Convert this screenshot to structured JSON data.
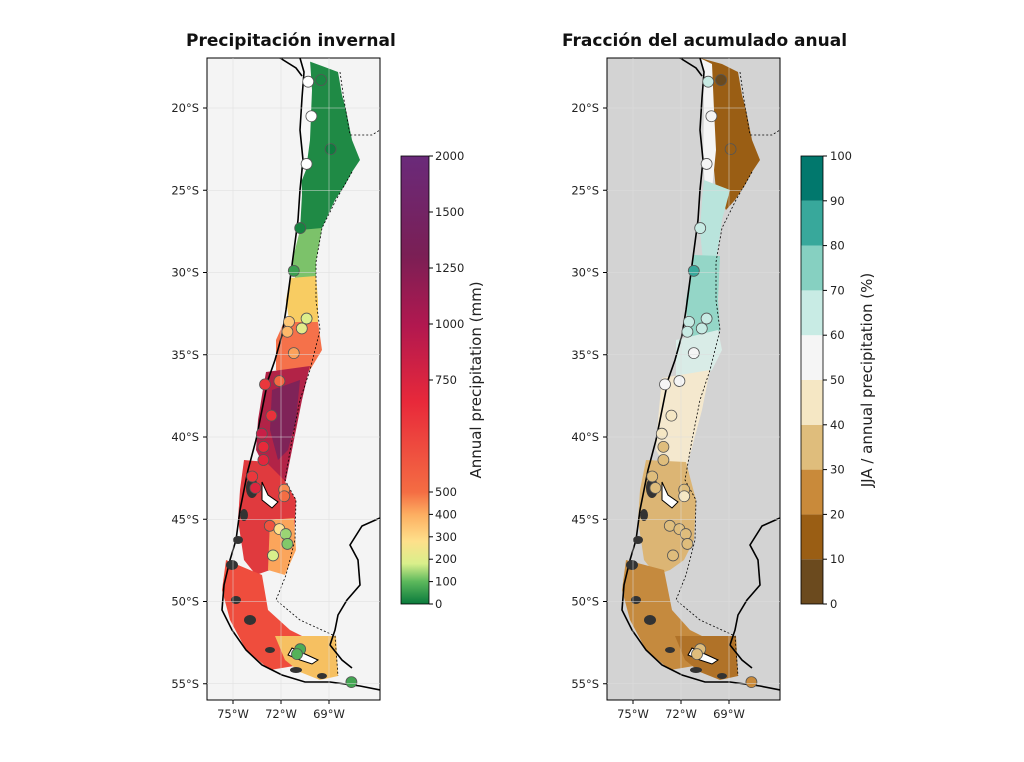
{
  "panels": [
    {
      "title": "Precipitación invernal",
      "colorbar": {
        "label": "Annual precipitation (mm)",
        "ticks": [
          "0",
          "100",
          "200",
          "300",
          "400",
          "500",
          "750",
          "1000",
          "1250",
          "1500",
          "2000"
        ],
        "colors": [
          "#0a7a3c",
          "#5cb85c",
          "#d9ef8b",
          "#fee08b",
          "#fdae61",
          "#f46d43",
          "#e8293a",
          "#b2184f",
          "#7a1f55",
          "#6a2a7a"
        ]
      },
      "colormap_name": "RdYlGn-to-purple",
      "background": "#f4f4f4"
    },
    {
      "title": "Fracción del acumulado anual",
      "colorbar": {
        "label": "JJA / annual precipitation (%)",
        "ticks": [
          "0",
          "10",
          "20",
          "30",
          "40",
          "50",
          "60",
          "70",
          "80",
          "90",
          "100"
        ],
        "colors": [
          "#6b4a1e",
          "#9a5e14",
          "#c98a3a",
          "#dfbd7c",
          "#f5e7c4",
          "#f5f5f5",
          "#c8ebe4",
          "#86d0c1",
          "#38a89b",
          "#01786d",
          "#003c30"
        ]
      },
      "colormap_name": "BrBG",
      "background": "#d3d3d3"
    }
  ],
  "axes": {
    "lat_ticks": [
      "20°S",
      "25°S",
      "30°S",
      "35°S",
      "40°S",
      "45°S",
      "50°S",
      "55°S"
    ],
    "lon_ticks": [
      "75°W",
      "72°W",
      "69°W"
    ]
  },
  "stations": [
    {
      "lat": -18.4,
      "lon": -70.3,
      "p": 0,
      "f": 60
    },
    {
      "lat": -18.3,
      "lon": -69.5,
      "p": 20,
      "f": 5
    },
    {
      "lat": -20.5,
      "lon": -70.1,
      "p": 0,
      "f": 55
    },
    {
      "lat": -22.5,
      "lon": -68.9,
      "p": 5,
      "f": 12
    },
    {
      "lat": -23.4,
      "lon": -70.4,
      "p": 0,
      "f": 55
    },
    {
      "lat": -27.3,
      "lon": -70.8,
      "p": 15,
      "f": 68
    },
    {
      "lat": -29.9,
      "lon": -71.2,
      "p": 60,
      "f": 85
    },
    {
      "lat": -33.0,
      "lon": -71.5,
      "p": 350,
      "f": 67
    },
    {
      "lat": -33.4,
      "lon": -70.7,
      "p": 230,
      "f": 62
    },
    {
      "lat": -32.8,
      "lon": -70.4,
      "p": 210,
      "f": 63
    },
    {
      "lat": -33.6,
      "lon": -71.6,
      "p": 380,
      "f": 65
    },
    {
      "lat": -34.9,
      "lon": -71.2,
      "p": 420,
      "f": 58
    },
    {
      "lat": -36.6,
      "lon": -72.1,
      "p": 520,
      "f": 52
    },
    {
      "lat": -36.8,
      "lon": -73.0,
      "p": 700,
      "f": 50
    },
    {
      "lat": -38.7,
      "lon": -72.6,
      "p": 720,
      "f": 42
    },
    {
      "lat": -39.8,
      "lon": -73.2,
      "p": 900,
      "f": 40
    },
    {
      "lat": -40.6,
      "lon": -73.1,
      "p": 750,
      "f": 38
    },
    {
      "lat": -41.4,
      "lon": -73.1,
      "p": 780,
      "f": 38
    },
    {
      "lat": -42.4,
      "lon": -73.8,
      "p": 700,
      "f": 36
    },
    {
      "lat": -43.1,
      "lon": -73.6,
      "p": 800,
      "f": 35
    },
    {
      "lat": -43.2,
      "lon": -71.8,
      "p": 450,
      "f": 38
    },
    {
      "lat": -43.6,
      "lon": -71.8,
      "p": 500,
      "f": 40
    },
    {
      "lat": -45.4,
      "lon": -72.7,
      "p": 600,
      "f": 35
    },
    {
      "lat": -45.6,
      "lon": -72.1,
      "p": 300,
      "f": 32
    },
    {
      "lat": -45.9,
      "lon": -71.7,
      "p": 150,
      "f": 30
    },
    {
      "lat": -46.5,
      "lon": -71.6,
      "p": 130,
      "f": 36
    },
    {
      "lat": -47.2,
      "lon": -72.5,
      "p": 200,
      "f": 35
    },
    {
      "lat": -52.9,
      "lon": -70.8,
      "p": 80,
      "f": 30
    },
    {
      "lat": -53.2,
      "lon": -71.0,
      "p": 90,
      "f": 30
    },
    {
      "lat": -54.9,
      "lon": -67.6,
      "p": 70,
      "f": 28
    }
  ]
}
